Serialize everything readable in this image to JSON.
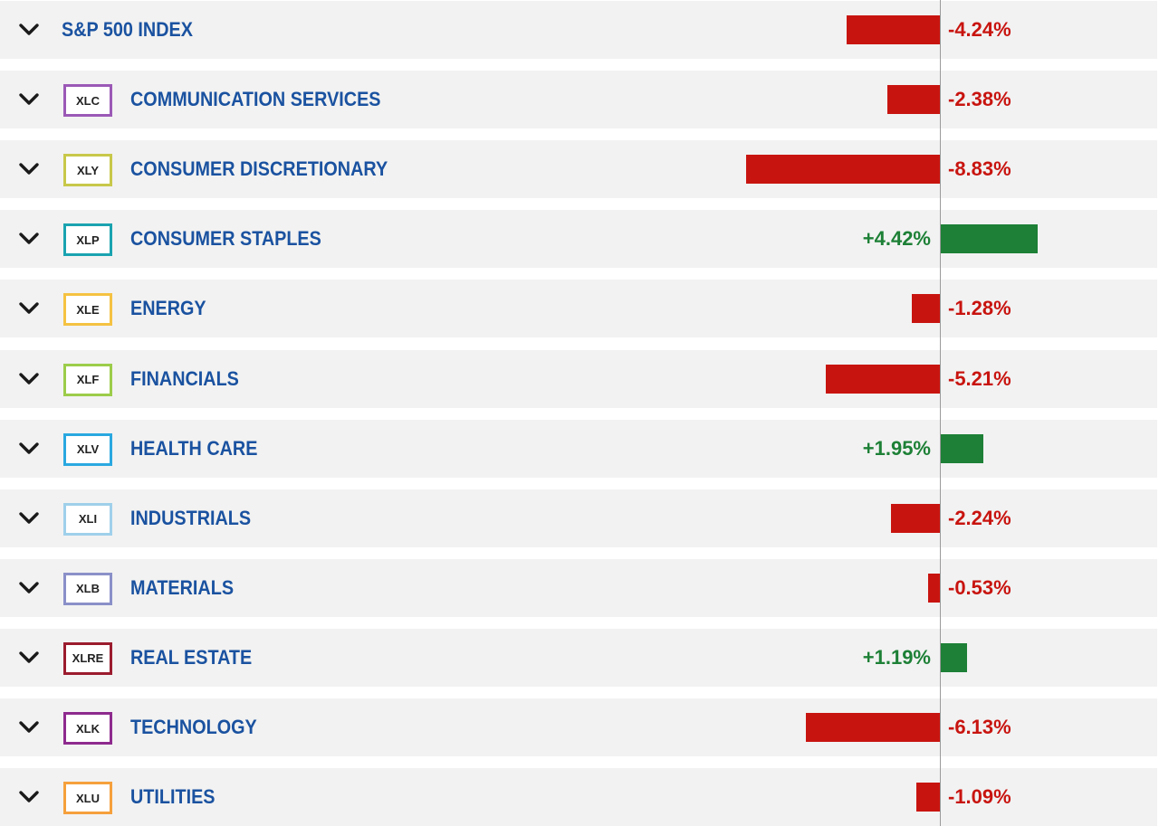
{
  "colors": {
    "negative": "#c8140f",
    "positive": "#1d8036",
    "label": "#1a52a0",
    "row_bg": "#f2f2f2"
  },
  "icons": {
    "expand": "chevron-down-icon"
  },
  "chart_data": {
    "type": "bar",
    "orientation": "horizontal",
    "value_unit": "%",
    "rows": [
      {
        "ticker": "",
        "label": "S&P 500 INDEX",
        "value": -4.24,
        "display": "-4.24%",
        "badge_color": ""
      },
      {
        "ticker": "XLC",
        "label": "COMMUNICATION SERVICES",
        "value": -2.38,
        "display": "-2.38%",
        "badge_color": "#9b59b6"
      },
      {
        "ticker": "XLY",
        "label": "CONSUMER DISCRETIONARY",
        "value": -8.83,
        "display": "-8.83%",
        "badge_color": "#c8c84a"
      },
      {
        "ticker": "XLP",
        "label": "CONSUMER STAPLES",
        "value": 4.42,
        "display": "+4.42%",
        "badge_color": "#1aa3b0"
      },
      {
        "ticker": "XLE",
        "label": "ENERGY",
        "value": -1.28,
        "display": "-1.28%",
        "badge_color": "#f5c242"
      },
      {
        "ticker": "XLF",
        "label": "FINANCIALS",
        "value": -5.21,
        "display": "-5.21%",
        "badge_color": "#9ccc4a"
      },
      {
        "ticker": "XLV",
        "label": "HEALTH CARE",
        "value": 1.95,
        "display": "+1.95%",
        "badge_color": "#2aa8e0"
      },
      {
        "ticker": "XLI",
        "label": "INDUSTRIALS",
        "value": -2.24,
        "display": "-2.24%",
        "badge_color": "#9fd0ea"
      },
      {
        "ticker": "XLB",
        "label": "MATERIALS",
        "value": -0.53,
        "display": "-0.53%",
        "badge_color": "#8a90c8"
      },
      {
        "ticker": "XLRE",
        "label": "REAL ESTATE",
        "value": 1.19,
        "display": "+1.19%",
        "badge_color": "#9b1c2e"
      },
      {
        "ticker": "XLK",
        "label": "TECHNOLOGY",
        "value": -6.13,
        "display": "-6.13%",
        "badge_color": "#8e2a8e"
      },
      {
        "ticker": "XLU",
        "label": "UTILITIES",
        "value": -1.09,
        "display": "-1.09%",
        "badge_color": "#f5a03c"
      }
    ]
  }
}
